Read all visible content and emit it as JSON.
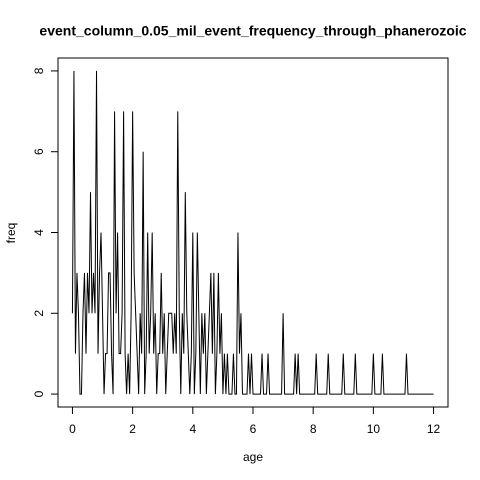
{
  "chart_data": {
    "type": "line",
    "title": "event_column_0.05_mil_event_frequency_through_phanerozoic",
    "xlabel": "age",
    "ylabel": "freq",
    "color": "#000000",
    "xlim": [
      -0.48,
      12.48
    ],
    "xticks": [
      0,
      2,
      4,
      6,
      8,
      10,
      12
    ],
    "ylim": [
      -0.32,
      8.32
    ],
    "yticks": [
      0,
      2,
      4,
      6,
      8
    ],
    "x": [
      0,
      0.05,
      0.1,
      0.15,
      0.2,
      0.25,
      0.3,
      0.35,
      0.4,
      0.45,
      0.5,
      0.55,
      0.6,
      0.65,
      0.7,
      0.75,
      0.8,
      0.85,
      0.9,
      0.95,
      1.0,
      1.05,
      1.1,
      1.15,
      1.2,
      1.25,
      1.3,
      1.35,
      1.4,
      1.45,
      1.5,
      1.55,
      1.6,
      1.65,
      1.7,
      1.75,
      1.8,
      1.85,
      1.9,
      1.95,
      2.0,
      2.05,
      2.1,
      2.15,
      2.2,
      2.25,
      2.3,
      2.35,
      2.4,
      2.45,
      2.5,
      2.55,
      2.6,
      2.65,
      2.7,
      2.75,
      2.8,
      2.85,
      2.9,
      2.95,
      3.0,
      3.05,
      3.1,
      3.15,
      3.2,
      3.25,
      3.3,
      3.35,
      3.4,
      3.45,
      3.5,
      3.55,
      3.6,
      3.65,
      3.7,
      3.75,
      3.8,
      3.85,
      3.9,
      3.95,
      4.0,
      4.05,
      4.1,
      4.15,
      4.2,
      4.25,
      4.3,
      4.35,
      4.4,
      4.45,
      4.5,
      4.55,
      4.6,
      4.65,
      4.7,
      4.75,
      4.8,
      4.85,
      4.9,
      4.95,
      5.0,
      5.05,
      5.1,
      5.15,
      5.2,
      5.25,
      5.3,
      5.35,
      5.4,
      5.45,
      5.5,
      5.55,
      5.6,
      5.65,
      5.7,
      5.75,
      5.8,
      5.85,
      5.9,
      5.95,
      6.0,
      6.05,
      6.1,
      6.15,
      6.2,
      6.25,
      6.3,
      6.35,
      6.4,
      6.45,
      6.5,
      6.55,
      6.95,
      7.0,
      7.05,
      7.35,
      7.4,
      7.45,
      7.5,
      7.55,
      8.05,
      8.1,
      8.15,
      8.45,
      8.5,
      8.55,
      8.95,
      9.0,
      9.05,
      9.35,
      9.4,
      9.45,
      9.95,
      10.0,
      10.05,
      10.25,
      10.3,
      10.35,
      11.05,
      11.1,
      11.15,
      12.0
    ],
    "values": [
      2,
      8,
      1,
      3,
      2,
      0,
      0,
      2,
      3,
      1,
      3,
      2,
      5,
      2,
      3,
      2,
      8,
      1,
      3,
      4,
      2,
      0,
      1,
      1,
      3,
      3,
      1,
      0,
      7,
      2,
      4,
      1,
      1,
      2,
      7,
      1,
      0,
      1,
      0,
      2,
      7,
      3,
      2,
      1,
      0,
      2,
      1,
      6,
      0,
      1,
      4,
      1,
      2,
      4,
      1,
      2,
      0,
      1,
      1,
      3,
      1,
      2,
      0,
      1,
      2,
      2,
      2,
      1,
      2,
      1,
      7,
      2,
      0,
      2,
      1,
      5,
      2,
      1,
      0,
      1,
      4,
      0,
      1,
      4,
      2,
      0,
      2,
      1,
      2,
      0,
      1,
      2,
      3,
      1,
      3,
      0,
      1,
      3,
      1,
      2,
      0,
      1,
      0,
      1,
      0,
      0,
      0,
      1,
      0,
      0,
      4,
      1,
      2,
      0,
      0,
      0,
      0,
      1,
      0,
      1,
      0,
      0,
      0,
      0,
      0,
      0,
      1,
      0,
      0,
      0,
      1,
      0,
      0,
      2,
      0,
      0,
      1,
      0,
      1,
      0,
      0,
      1,
      0,
      0,
      1,
      0,
      0,
      1,
      0,
      0,
      1,
      0,
      0,
      1,
      0,
      0,
      1,
      0,
      0,
      1,
      0,
      0
    ]
  }
}
